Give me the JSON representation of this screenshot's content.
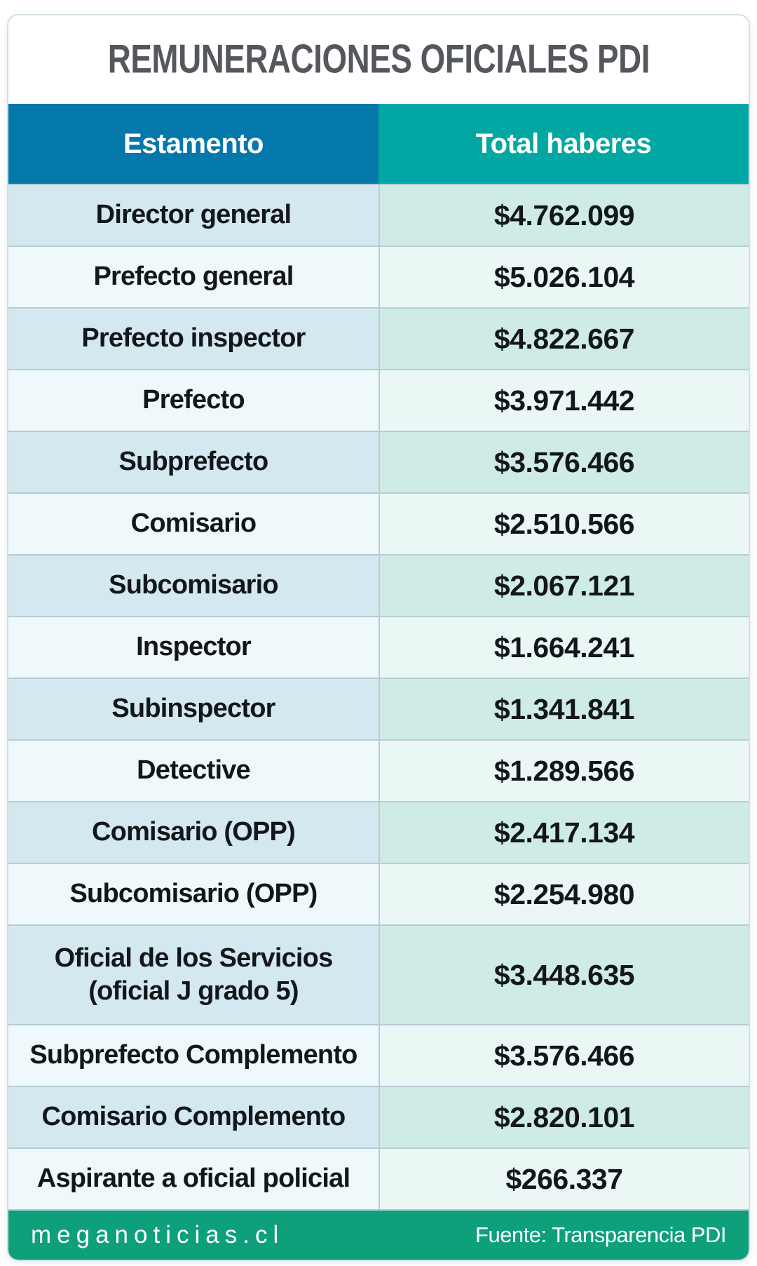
{
  "chart_data": {
    "type": "table",
    "title": "REMUNERACIONES OFICIALES PDI",
    "columns": [
      "Estamento",
      "Total haberes"
    ],
    "rows": [
      {
        "estamento": "Director general",
        "total": "$4.762.099"
      },
      {
        "estamento": "Prefecto general",
        "total": "$5.026.104"
      },
      {
        "estamento": "Prefecto inspector",
        "total": "$4.822.667"
      },
      {
        "estamento": "Prefecto",
        "total": "$3.971.442"
      },
      {
        "estamento": "Subprefecto",
        "total": "$3.576.466"
      },
      {
        "estamento": "Comisario",
        "total": "$2.510.566"
      },
      {
        "estamento": "Subcomisario",
        "total": "$2.067.121"
      },
      {
        "estamento": "Inspector",
        "total": "$1.664.241"
      },
      {
        "estamento": "Subinspector",
        "total": "$1.341.841"
      },
      {
        "estamento": "Detective",
        "total": "$1.289.566"
      },
      {
        "estamento": "Comisario (OPP)",
        "total": "$2.417.134"
      },
      {
        "estamento": "Subcomisario (OPP)",
        "total": "$2.254.980"
      },
      {
        "estamento": "Oficial de los Servicios\n(oficial J grado 5)",
        "total": "$3.448.635"
      },
      {
        "estamento": "Subprefecto Complemento",
        "total": "$3.576.466"
      },
      {
        "estamento": "Comisario Complemento",
        "total": "$2.820.101"
      },
      {
        "estamento": "Aspirante a oficial policial",
        "total": "$266.337"
      }
    ],
    "values_clp": [
      4762099,
      5026104,
      4822667,
      3971442,
      3576466,
      2510566,
      2067121,
      1664241,
      1341841,
      1289566,
      2417134,
      2254980,
      3448635,
      3576466,
      2820101,
      266337
    ]
  },
  "footer": {
    "brand": "meganoticias.cl",
    "source": "Fuente: Transparencia PDI"
  },
  "colors": {
    "header_blue": "#0578ab",
    "header_teal": "#02a7a4",
    "row_a_left": "#d4e8ef",
    "row_a_right": "#ceebe6",
    "row_b_left": "#eff8fb",
    "row_b_right": "#eaf7f5",
    "grid": "#b7ccd4",
    "card_border": "#d3dee6",
    "footer_green": "#0da07a",
    "title_color": "#54575e",
    "text_color": "#13161a"
  }
}
